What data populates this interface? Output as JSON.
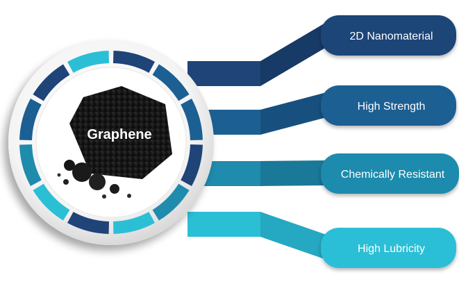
{
  "center": {
    "label": "Graphene"
  },
  "features": [
    {
      "label": "2D Nanomaterial",
      "color": "#1e4478"
    },
    {
      "label": "High Strength",
      "color": "#1c5f93"
    },
    {
      "label": "Chemically Resistant",
      "color": "#1f8bad"
    },
    {
      "label": "High Lubricity",
      "color": "#2bbfd6"
    }
  ],
  "ring": {
    "colors": [
      "#1e4478",
      "#1c5f93",
      "#1f8bad",
      "#2bbfd6"
    ]
  }
}
